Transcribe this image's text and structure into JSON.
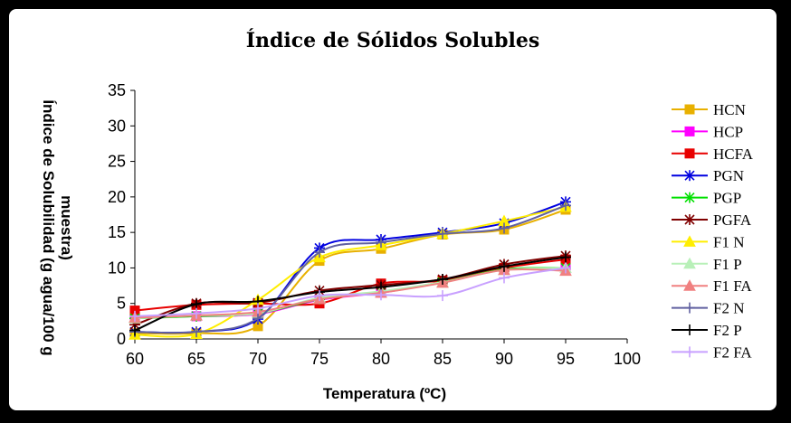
{
  "chart_data": {
    "type": "line",
    "title": "Índice de Sólidos Solubles",
    "xlabel": "Temperatura (ºC)",
    "ylabel": "Índice de Solubilidad (g agua/100 g muestra)",
    "ylabel_lines": [
      "Índice de Solubilidad (g agua/100 g",
      "muestra)"
    ],
    "x_ticks": [
      60,
      65,
      70,
      75,
      80,
      85,
      90,
      95,
      100
    ],
    "y_ticks": [
      0,
      5,
      10,
      15,
      20,
      25,
      30,
      35
    ],
    "xlim": [
      60,
      100
    ],
    "ylim": [
      0,
      35
    ],
    "grid": false,
    "legend_position": "right",
    "x": [
      60,
      65,
      70,
      75,
      80,
      85,
      90,
      95
    ],
    "series": [
      {
        "name": "HCN",
        "color": "#e8b000",
        "marker": "square",
        "values": [
          0.8,
          0.8,
          1.8,
          11.0,
          12.7,
          14.7,
          15.4,
          18.2
        ]
      },
      {
        "name": "HCP",
        "color": "#ff00ff",
        "marker": "square",
        "values": [
          3.0,
          3.2,
          3.5,
          5.5,
          6.5,
          8.0,
          9.8,
          9.9
        ]
      },
      {
        "name": "HCFA",
        "color": "#e80000",
        "marker": "square",
        "values": [
          4.0,
          4.8,
          5.0,
          5.0,
          7.8,
          8.2,
          10.0,
          11.2
        ]
      },
      {
        "name": "PGN",
        "color": "#0000e0",
        "marker": "asterisk",
        "values": [
          1.0,
          1.0,
          2.8,
          12.8,
          14.0,
          15.0,
          16.3,
          19.3
        ]
      },
      {
        "name": "PGP",
        "color": "#00e000",
        "marker": "asterisk",
        "values": [
          2.9,
          3.2,
          3.6,
          5.6,
          6.6,
          8.0,
          9.8,
          10.0
        ]
      },
      {
        "name": "PGFA",
        "color": "#800000",
        "marker": "asterisk",
        "values": [
          2.0,
          5.0,
          5.1,
          6.8,
          7.6,
          8.4,
          10.5,
          11.7
        ]
      },
      {
        "name": "F1 N",
        "color": "#ffee00",
        "marker": "triangle",
        "values": [
          0.6,
          0.7,
          5.5,
          11.5,
          13.2,
          14.8,
          16.6,
          18.6
        ]
      },
      {
        "name": "F1 P",
        "color": "#b8f0b8",
        "marker": "triangle",
        "values": [
          2.9,
          3.3,
          3.6,
          5.8,
          6.7,
          8.0,
          9.7,
          10.0
        ]
      },
      {
        "name": "F1 FA",
        "color": "#f08080",
        "marker": "triangle",
        "values": [
          3.0,
          3.3,
          3.8,
          5.6,
          6.5,
          7.9,
          9.7,
          9.6
        ]
      },
      {
        "name": "F2 N",
        "color": "#6060a0",
        "marker": "plus",
        "values": [
          1.0,
          1.0,
          2.9,
          12.2,
          13.6,
          14.8,
          15.6,
          18.8
        ]
      },
      {
        "name": "F2 P",
        "color": "#000000",
        "marker": "plus",
        "values": [
          1.2,
          4.9,
          5.3,
          6.6,
          7.3,
          8.4,
          10.2,
          11.5
        ]
      },
      {
        "name": "F2 FA",
        "color": "#c8a0ff",
        "marker": "plus",
        "values": [
          3.2,
          3.6,
          4.3,
          6.1,
          6.2,
          6.1,
          8.6,
          10.0
        ]
      }
    ]
  }
}
